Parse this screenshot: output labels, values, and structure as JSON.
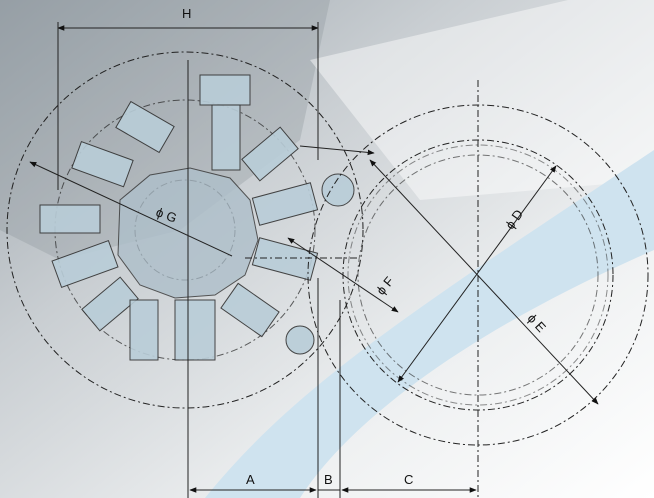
{
  "diagram": {
    "labels": {
      "H": "H",
      "G": "ϕ G",
      "D": "ϕ D",
      "F": "ϕ F",
      "E": "ϕ E",
      "A": "A",
      "B": "B",
      "C": "C"
    },
    "colors": {
      "band": "#cfe3ef",
      "tool": "#b9cdd8",
      "background_grey": "#c9ced2",
      "line": "#222222"
    }
  }
}
